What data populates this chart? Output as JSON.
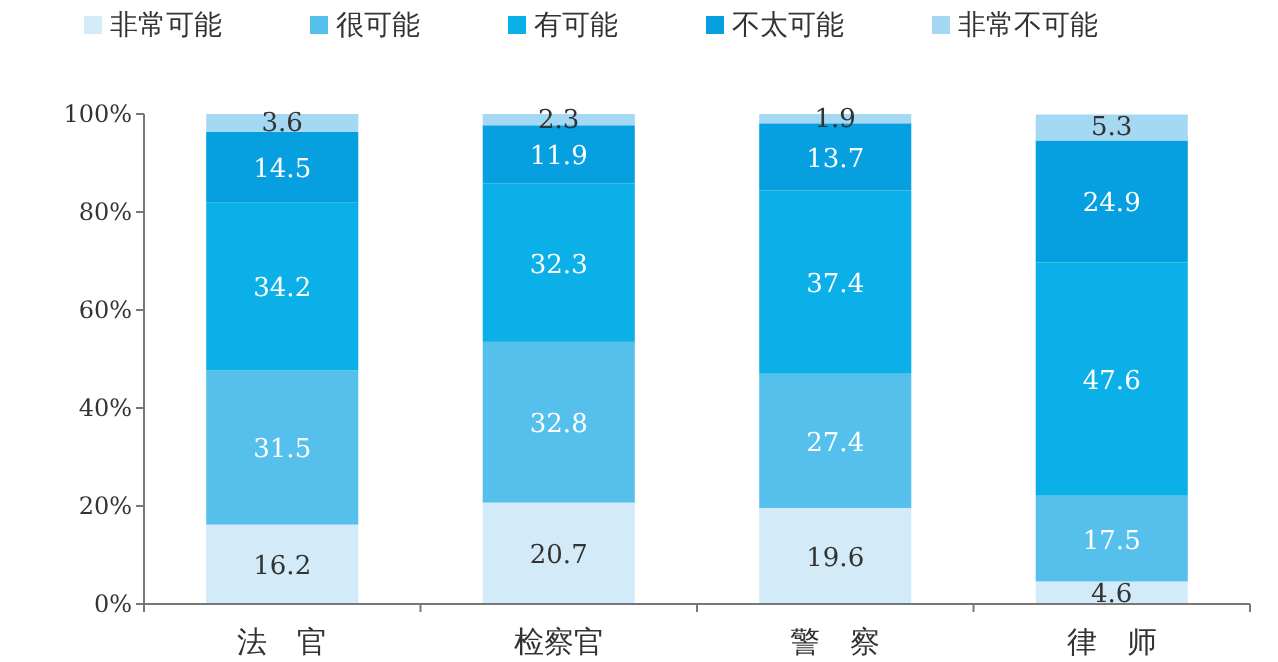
{
  "chart_data": {
    "type": "bar",
    "stacked": true,
    "categories": [
      "法　官",
      "检察官",
      "警　察",
      "律　师"
    ],
    "series": [
      {
        "name": "非常可能",
        "color": "#d3ebf8",
        "values": [
          16.2,
          20.7,
          19.6,
          4.6
        ]
      },
      {
        "name": "很可能",
        "color": "#55c0ec",
        "values": [
          31.5,
          32.8,
          27.4,
          17.5
        ]
      },
      {
        "name": "有可能",
        "color": "#0cb0e8",
        "values": [
          34.2,
          32.3,
          37.4,
          47.6
        ]
      },
      {
        "name": "不太可能",
        "color": "#069fe0",
        "values": [
          14.5,
          11.9,
          13.7,
          24.9
        ]
      },
      {
        "name": "非常不可能",
        "color": "#a5d9f3",
        "values": [
          3.6,
          2.3,
          1.9,
          5.3
        ]
      }
    ],
    "ylim": [
      0,
      100
    ],
    "yticks": [
      {
        "value": 0,
        "label": "0%"
      },
      {
        "value": 20,
        "label": "20%"
      },
      {
        "value": 40,
        "label": "40%"
      },
      {
        "value": 60,
        "label": "60%"
      },
      {
        "value": 80,
        "label": "80%"
      },
      {
        "value": 100,
        "label": "100%"
      }
    ],
    "data_labels": true,
    "legend": "top"
  }
}
